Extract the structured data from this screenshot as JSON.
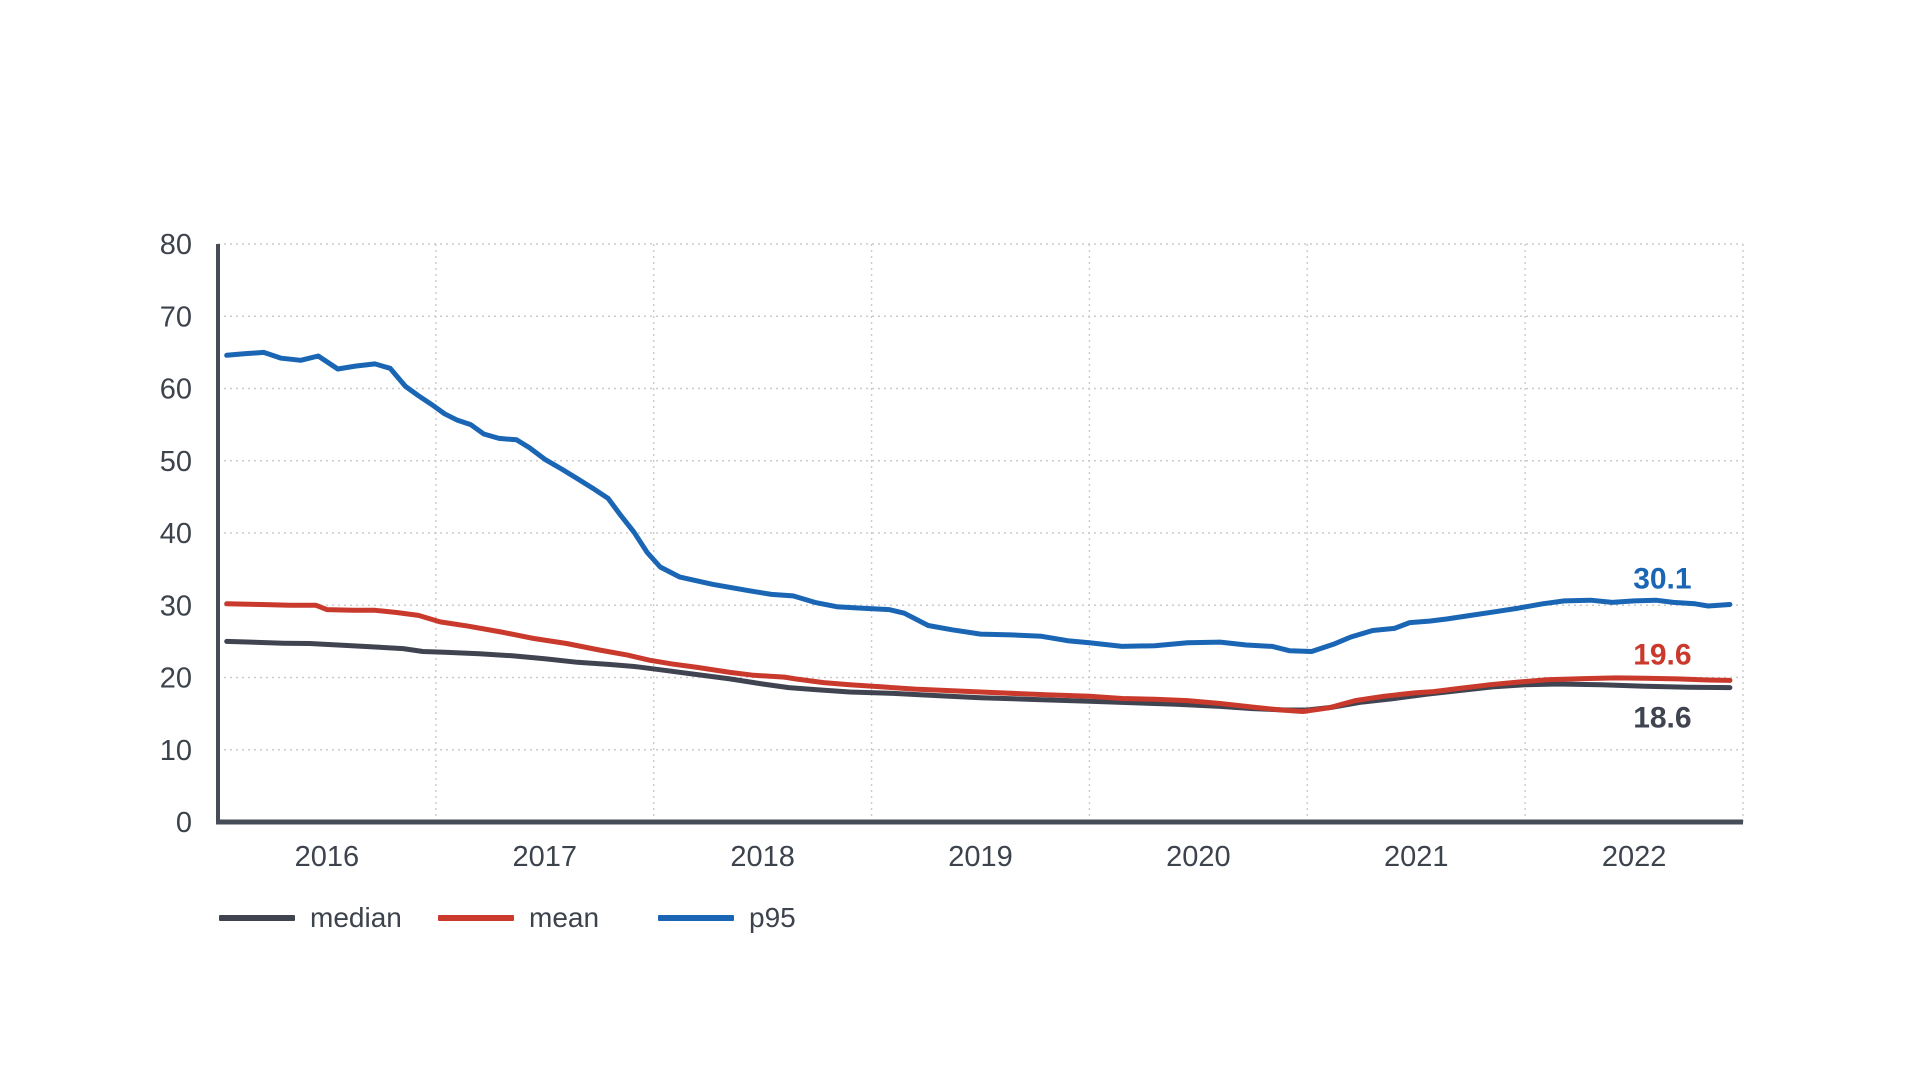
{
  "chart_data": {
    "type": "line",
    "title": "",
    "xlabel": "",
    "ylabel": "",
    "x_domain": [
      2016,
      2023
    ],
    "y_domain": [
      0,
      80
    ],
    "y_ticks": [
      0,
      10,
      20,
      30,
      40,
      50,
      60,
      70,
      80
    ],
    "x_tick_labels": [
      "2016",
      "2017",
      "2018",
      "2019",
      "2020",
      "2021",
      "2022"
    ],
    "x_tick_years": [
      2016,
      2017,
      2018,
      2019,
      2020,
      2021,
      2022
    ],
    "x_gridline_years": [
      2017,
      2018,
      2019,
      2020,
      2021,
      2022,
      2023
    ],
    "grid": "dotted",
    "legend_position": "bottom-left",
    "colors": {
      "background": "#ffffff",
      "axis_text": "#3d434c",
      "spine": "#474d56",
      "gridline": "#cbcbcb",
      "median": "#3f4450",
      "mean": "#c9392c",
      "p95": "#1a66b5"
    },
    "end_label_year": 2022.63,
    "series": [
      {
        "name": "median",
        "color": "#3f4450",
        "end_label": "18.6",
        "end_label_side": "below",
        "points": [
          [
            2016.04,
            25.0
          ],
          [
            2016.2,
            24.85
          ],
          [
            2016.3,
            24.75
          ],
          [
            2016.42,
            24.7
          ],
          [
            2016.55,
            24.5
          ],
          [
            2016.7,
            24.25
          ],
          [
            2016.85,
            24.0
          ],
          [
            2016.94,
            23.6
          ],
          [
            2017.04,
            23.5
          ],
          [
            2017.2,
            23.3
          ],
          [
            2017.35,
            23.0
          ],
          [
            2017.5,
            22.6
          ],
          [
            2017.65,
            22.1
          ],
          [
            2017.8,
            21.8
          ],
          [
            2017.92,
            21.5
          ],
          [
            2018.05,
            21.0
          ],
          [
            2018.2,
            20.4
          ],
          [
            2018.35,
            19.8
          ],
          [
            2018.5,
            19.1
          ],
          [
            2018.62,
            18.6
          ],
          [
            2018.75,
            18.3
          ],
          [
            2018.9,
            18.0
          ],
          [
            2019.1,
            17.8
          ],
          [
            2019.3,
            17.5
          ],
          [
            2019.5,
            17.2
          ],
          [
            2019.8,
            16.9
          ],
          [
            2020.0,
            16.7
          ],
          [
            2020.2,
            16.5
          ],
          [
            2020.4,
            16.3
          ],
          [
            2020.6,
            16.0
          ],
          [
            2020.75,
            15.7
          ],
          [
            2020.9,
            15.5
          ],
          [
            2021.0,
            15.5
          ],
          [
            2021.12,
            15.9
          ],
          [
            2021.25,
            16.6
          ],
          [
            2021.4,
            17.1
          ],
          [
            2021.55,
            17.7
          ],
          [
            2021.7,
            18.2
          ],
          [
            2021.85,
            18.7
          ],
          [
            2022.0,
            19.0
          ],
          [
            2022.15,
            19.1
          ],
          [
            2022.35,
            19.0
          ],
          [
            2022.55,
            18.8
          ],
          [
            2022.75,
            18.65
          ],
          [
            2022.94,
            18.6
          ]
        ]
      },
      {
        "name": "mean",
        "color": "#c9392c",
        "end_label": "19.6",
        "end_label_side": "above",
        "points": [
          [
            2016.04,
            30.2
          ],
          [
            2016.2,
            30.1
          ],
          [
            2016.33,
            30.0
          ],
          [
            2016.45,
            30.0
          ],
          [
            2016.5,
            29.4
          ],
          [
            2016.62,
            29.3
          ],
          [
            2016.72,
            29.3
          ],
          [
            2016.82,
            29.0
          ],
          [
            2016.92,
            28.6
          ],
          [
            2017.02,
            27.7
          ],
          [
            2017.15,
            27.1
          ],
          [
            2017.3,
            26.3
          ],
          [
            2017.45,
            25.4
          ],
          [
            2017.6,
            24.7
          ],
          [
            2017.75,
            23.8
          ],
          [
            2017.88,
            23.1
          ],
          [
            2017.98,
            22.4
          ],
          [
            2018.08,
            21.9
          ],
          [
            2018.2,
            21.4
          ],
          [
            2018.35,
            20.7
          ],
          [
            2018.46,
            20.3
          ],
          [
            2018.6,
            20.05
          ],
          [
            2018.65,
            19.8
          ],
          [
            2018.78,
            19.3
          ],
          [
            2018.9,
            19.0
          ],
          [
            2019.05,
            18.7
          ],
          [
            2019.2,
            18.4
          ],
          [
            2019.5,
            18.0
          ],
          [
            2019.8,
            17.6
          ],
          [
            2020.0,
            17.4
          ],
          [
            2020.15,
            17.1
          ],
          [
            2020.3,
            17.0
          ],
          [
            2020.45,
            16.8
          ],
          [
            2020.6,
            16.4
          ],
          [
            2020.75,
            15.9
          ],
          [
            2020.88,
            15.5
          ],
          [
            2020.98,
            15.3
          ],
          [
            2021.1,
            15.8
          ],
          [
            2021.22,
            16.8
          ],
          [
            2021.35,
            17.4
          ],
          [
            2021.5,
            17.9
          ],
          [
            2021.58,
            18.05
          ],
          [
            2021.7,
            18.5
          ],
          [
            2021.84,
            19.0
          ],
          [
            2021.96,
            19.35
          ],
          [
            2022.1,
            19.7
          ],
          [
            2022.27,
            19.85
          ],
          [
            2022.42,
            19.95
          ],
          [
            2022.55,
            19.9
          ],
          [
            2022.7,
            19.8
          ],
          [
            2022.84,
            19.65
          ],
          [
            2022.94,
            19.6
          ]
        ]
      },
      {
        "name": "p95",
        "color": "#1a66b5",
        "end_label": "30.1",
        "end_label_side": "above",
        "points": [
          [
            2016.04,
            64.6
          ],
          [
            2016.12,
            64.8
          ],
          [
            2016.21,
            65.0
          ],
          [
            2016.29,
            64.2
          ],
          [
            2016.38,
            63.9
          ],
          [
            2016.46,
            64.5
          ],
          [
            2016.55,
            62.7
          ],
          [
            2016.63,
            63.1
          ],
          [
            2016.72,
            63.4
          ],
          [
            2016.79,
            62.8
          ],
          [
            2016.86,
            60.3
          ],
          [
            2016.92,
            59.0
          ],
          [
            2016.98,
            57.8
          ],
          [
            2017.04,
            56.5
          ],
          [
            2017.1,
            55.6
          ],
          [
            2017.16,
            55.0
          ],
          [
            2017.22,
            53.7
          ],
          [
            2017.29,
            53.1
          ],
          [
            2017.37,
            52.9
          ],
          [
            2017.43,
            51.8
          ],
          [
            2017.5,
            50.2
          ],
          [
            2017.58,
            48.8
          ],
          [
            2017.65,
            47.5
          ],
          [
            2017.72,
            46.2
          ],
          [
            2017.79,
            44.8
          ],
          [
            2017.85,
            42.4
          ],
          [
            2017.91,
            40.1
          ],
          [
            2017.97,
            37.3
          ],
          [
            2018.03,
            35.3
          ],
          [
            2018.12,
            33.9
          ],
          [
            2018.27,
            32.9
          ],
          [
            2018.44,
            32.0
          ],
          [
            2018.54,
            31.5
          ],
          [
            2018.64,
            31.3
          ],
          [
            2018.74,
            30.4
          ],
          [
            2018.84,
            29.8
          ],
          [
            2018.95,
            29.6
          ],
          [
            2019.08,
            29.4
          ],
          [
            2019.15,
            28.9
          ],
          [
            2019.26,
            27.2
          ],
          [
            2019.37,
            26.6
          ],
          [
            2019.5,
            26.0
          ],
          [
            2019.64,
            25.9
          ],
          [
            2019.78,
            25.7
          ],
          [
            2019.9,
            25.1
          ],
          [
            2020.0,
            24.8
          ],
          [
            2020.15,
            24.3
          ],
          [
            2020.3,
            24.4
          ],
          [
            2020.45,
            24.8
          ],
          [
            2020.6,
            24.9
          ],
          [
            2020.72,
            24.5
          ],
          [
            2020.84,
            24.3
          ],
          [
            2020.92,
            23.7
          ],
          [
            2021.02,
            23.6
          ],
          [
            2021.12,
            24.6
          ],
          [
            2021.2,
            25.6
          ],
          [
            2021.3,
            26.5
          ],
          [
            2021.4,
            26.8
          ],
          [
            2021.47,
            27.6
          ],
          [
            2021.56,
            27.8
          ],
          [
            2021.64,
            28.1
          ],
          [
            2021.75,
            28.6
          ],
          [
            2021.86,
            29.1
          ],
          [
            2021.97,
            29.6
          ],
          [
            2022.08,
            30.2
          ],
          [
            2022.18,
            30.6
          ],
          [
            2022.3,
            30.7
          ],
          [
            2022.4,
            30.4
          ],
          [
            2022.5,
            30.6
          ],
          [
            2022.6,
            30.7
          ],
          [
            2022.68,
            30.4
          ],
          [
            2022.78,
            30.2
          ],
          [
            2022.84,
            29.9
          ],
          [
            2022.94,
            30.1
          ]
        ]
      }
    ],
    "legend": [
      {
        "label": "median"
      },
      {
        "label": "mean"
      },
      {
        "label": "p95"
      }
    ]
  }
}
